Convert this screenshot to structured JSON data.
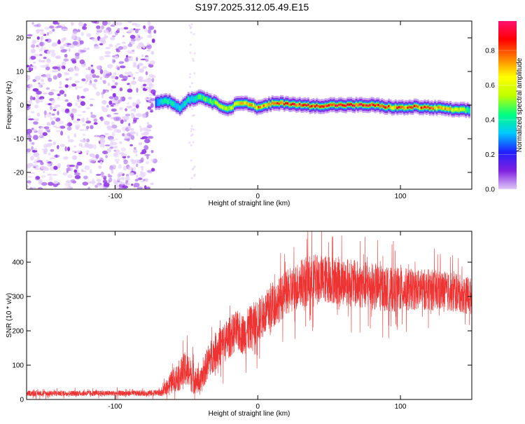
{
  "title": "S197.2025.312.05.49.E15",
  "chart_data": [
    {
      "type": "heatmap",
      "name": "spectrogram",
      "xlabel": "Height of straight line (km)",
      "ylabel": "Frequency (Hz)",
      "xlim": [
        -162,
        150
      ],
      "ylim": [
        -25,
        25
      ],
      "xticks": [
        -100,
        0,
        100
      ],
      "xtick_labels": [
        "-100",
        "0",
        "100"
      ],
      "yticks": [
        -20,
        -10,
        0,
        10,
        20
      ],
      "ytick_labels": [
        "-20",
        "-10",
        "0",
        "10",
        "20"
      ],
      "noise_region_x": [
        -162,
        -72
      ],
      "ridge": {
        "x": [
          -72,
          -65,
          -60,
          -55,
          -50,
          -45,
          -40,
          -35,
          -30,
          -25,
          -20,
          -15,
          -10,
          -5,
          0,
          10,
          20,
          30,
          40,
          50,
          60,
          70,
          80,
          90,
          100,
          110,
          120,
          130,
          140,
          148
        ],
        "freq": [
          0.8,
          1.5,
          0.5,
          -1.0,
          1.5,
          2.0,
          2.5,
          1.5,
          0.5,
          -0.5,
          -1.0,
          0.5,
          0.8,
          0.0,
          -0.8,
          0.5,
          0.5,
          0.0,
          -0.3,
          0.0,
          0.0,
          0.0,
          0.0,
          -0.5,
          -0.8,
          -0.5,
          -0.8,
          -1.0,
          -1.5,
          -1.5
        ],
        "peak_amplitude": [
          0.3,
          0.4,
          0.4,
          0.35,
          0.4,
          0.4,
          0.45,
          0.5,
          0.55,
          0.6,
          0.6,
          0.65,
          0.7,
          0.7,
          0.75,
          0.8,
          0.85,
          0.9,
          0.9,
          0.95,
          0.9,
          0.9,
          0.85,
          0.8,
          0.8,
          0.85,
          0.8,
          0.75,
          0.6,
          0.45
        ]
      }
    },
    {
      "type": "colorbar",
      "name": "amplitude-colorbar",
      "label": "Normalized spectral amplitude",
      "range": [
        0.0,
        0.97
      ],
      "ticks": [
        0.0,
        0.2,
        0.4,
        0.6,
        0.8
      ],
      "tick_labels": [
        "0.0",
        "0.2",
        "0.4",
        "0.6",
        "0.8"
      ],
      "stops": [
        "#e0c8f8",
        "#8020e0",
        "#2020ff",
        "#00c8ff",
        "#00ff80",
        "#c0ff00",
        "#ffff00",
        "#ff8000",
        "#ff0000",
        "#ff1070"
      ]
    },
    {
      "type": "line",
      "name": "snr",
      "xlabel": "Height of straight line (km)",
      "ylabel": "SNR (10 * v/v)",
      "xlim": [
        -162,
        150
      ],
      "ylim": [
        0,
        490
      ],
      "xticks": [
        -100,
        0,
        100
      ],
      "xtick_labels": [
        "-100",
        "0",
        "100"
      ],
      "yticks": [
        0,
        100,
        200,
        300,
        400
      ],
      "ytick_labels": [
        "0",
        "100",
        "200",
        "300",
        "400"
      ],
      "color": "#ee3333",
      "envelope": {
        "x": [
          -162,
          -140,
          -120,
          -100,
          -80,
          -67,
          -62,
          -55,
          -50,
          -45,
          -40,
          -35,
          -30,
          -25,
          -20,
          -15,
          -10,
          -5,
          0,
          5,
          10,
          15,
          20,
          25,
          30,
          35,
          40,
          50,
          60,
          70,
          80,
          90,
          100,
          110,
          120,
          130,
          140,
          150
        ],
        "mean": [
          18,
          18,
          18,
          18,
          18,
          20,
          45,
          70,
          90,
          60,
          50,
          110,
          140,
          160,
          180,
          200,
          190,
          210,
          230,
          250,
          270,
          290,
          310,
          320,
          340,
          345,
          350,
          350,
          345,
          335,
          330,
          320,
          320,
          320,
          320,
          315,
          310,
          300
        ],
        "spread": [
          8,
          8,
          8,
          8,
          8,
          10,
          30,
          45,
          55,
          45,
          35,
          50,
          55,
          60,
          60,
          60,
          60,
          65,
          65,
          65,
          65,
          65,
          65,
          70,
          70,
          75,
          75,
          70,
          70,
          70,
          70,
          65,
          65,
          60,
          60,
          60,
          55,
          55
        ]
      }
    }
  ]
}
